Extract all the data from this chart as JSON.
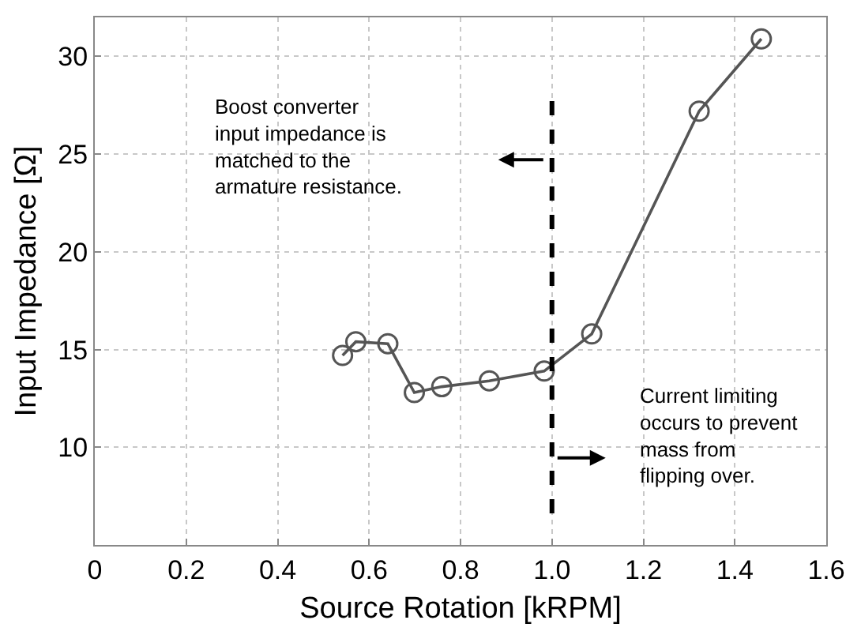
{
  "chart_data": {
    "type": "line",
    "xlabel": "Source Rotation [kRPM]",
    "ylabel": "Input Impedance [Ω]",
    "x": [
      0.542,
      0.571,
      0.641,
      0.699,
      0.759,
      0.863,
      0.983,
      1.087,
      1.322,
      1.458
    ],
    "series": [
      {
        "color": "#555555",
        "values": [
          14.7,
          15.4,
          15.3,
          12.8,
          13.1,
          13.4,
          13.9,
          15.8,
          27.2,
          30.9
        ]
      }
    ],
    "marker": "circle",
    "line_style": "solid",
    "xlim": [
      0,
      1.6
    ],
    "xticks": [
      0,
      0.2,
      0.4,
      0.6,
      0.8,
      {
        "value": 1.0,
        "label": "1.0"
      },
      1.2,
      1.4,
      1.6
    ],
    "ylim": [
      5,
      32
    ],
    "yticks": [
      10,
      15,
      20,
      25,
      30
    ],
    "grid": true,
    "ref_lines": [
      {
        "axis": "x",
        "value": 1.0,
        "color": "#000000",
        "line_style": "dashed"
      }
    ],
    "annotations": [
      "Boost converter\ninput impedance is\nmatched to the\narmature resistance.",
      "Current limiting\noccurs to prevent\nmass from\nflipping over."
    ]
  }
}
